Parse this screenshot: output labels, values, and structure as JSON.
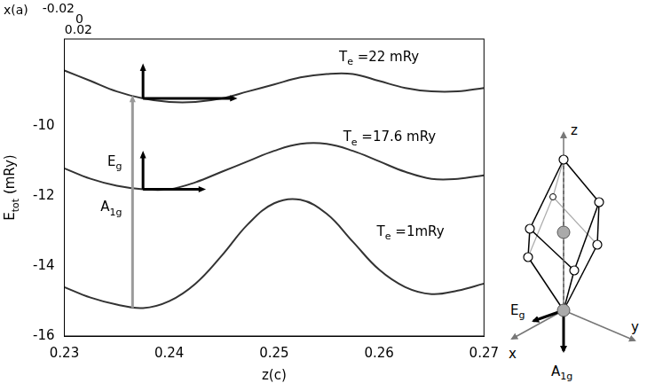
{
  "chart_data": {
    "type": "line",
    "xlabel": "z(c)",
    "ylabel": "Etot (mRy)",
    "depth_axis": {
      "label": "x(a)",
      "ticks": [
        -0.02,
        0,
        0.02
      ]
    },
    "x": [
      0.23,
      0.2325,
      0.235,
      0.2375,
      0.24,
      0.2425,
      0.245,
      0.2475,
      0.25,
      0.2525,
      0.255,
      0.2575,
      0.26,
      0.2625,
      0.265,
      0.2675,
      0.27
    ],
    "series": [
      {
        "name": "Te =22 mRy",
        "color": "#333333",
        "label_at": [
          0.26,
          -8.0
        ],
        "values": [
          -8.4,
          -8.7,
          -9.0,
          -9.2,
          -9.3,
          -9.3,
          -9.2,
          -9.0,
          -8.8,
          -8.6,
          -8.5,
          -8.5,
          -8.7,
          -8.9,
          -9.0,
          -9.0,
          -8.9
        ]
      },
      {
        "name": "Te =17.6 mRy",
        "color": "#333333",
        "label_at": [
          0.261,
          -10.3
        ],
        "values": [
          -11.2,
          -11.5,
          -11.7,
          -11.8,
          -11.8,
          -11.6,
          -11.3,
          -11.0,
          -10.7,
          -10.5,
          -10.5,
          -10.7,
          -11.0,
          -11.3,
          -11.5,
          -11.5,
          -11.4
        ]
      },
      {
        "name": "Te =1mRy",
        "color": "#333333",
        "label_at": [
          0.263,
          -13.0
        ],
        "values": [
          -14.6,
          -14.9,
          -15.1,
          -15.2,
          -15.0,
          -14.5,
          -13.7,
          -12.8,
          -12.2,
          -12.1,
          -12.5,
          -13.3,
          -14.1,
          -14.6,
          -14.8,
          -14.7,
          -14.5
        ]
      }
    ],
    "arrows": [
      {
        "from": [
          0.2365,
          -15.2
        ],
        "to": [
          0.2365,
          -9.1
        ],
        "color": "#9a9a9a"
      },
      {
        "from": [
          0.2375,
          -11.8
        ],
        "to": [
          0.2375,
          -10.7
        ],
        "color": "#000000"
      },
      {
        "from": [
          0.2375,
          -11.8
        ],
        "to": [
          0.2435,
          -11.8
        ],
        "color": "#000000"
      },
      {
        "from": [
          0.2375,
          -9.2
        ],
        "to": [
          0.2375,
          -8.2
        ],
        "color": "#000000"
      },
      {
        "from": [
          0.2375,
          -9.2
        ],
        "to": [
          0.2465,
          -9.2
        ],
        "color": "#000000"
      }
    ],
    "annotations": [
      {
        "text": "A1g",
        "x": 0.2355,
        "y": -12.3
      },
      {
        "text": "Eg",
        "x": 0.2355,
        "y": -11.0
      }
    ],
    "xlim": [
      0.23,
      0.27
    ],
    "xticks": [
      0.23,
      0.24,
      0.25,
      0.26,
      0.27
    ],
    "ylim": [
      -16,
      -7.5
    ],
    "yticks": [
      -16,
      -14,
      -12,
      -10
    ],
    "grid": false
  },
  "diagram": {
    "axis_labels": [
      "x",
      "y",
      "z"
    ],
    "modes": [
      "Eg",
      "A1g"
    ]
  }
}
